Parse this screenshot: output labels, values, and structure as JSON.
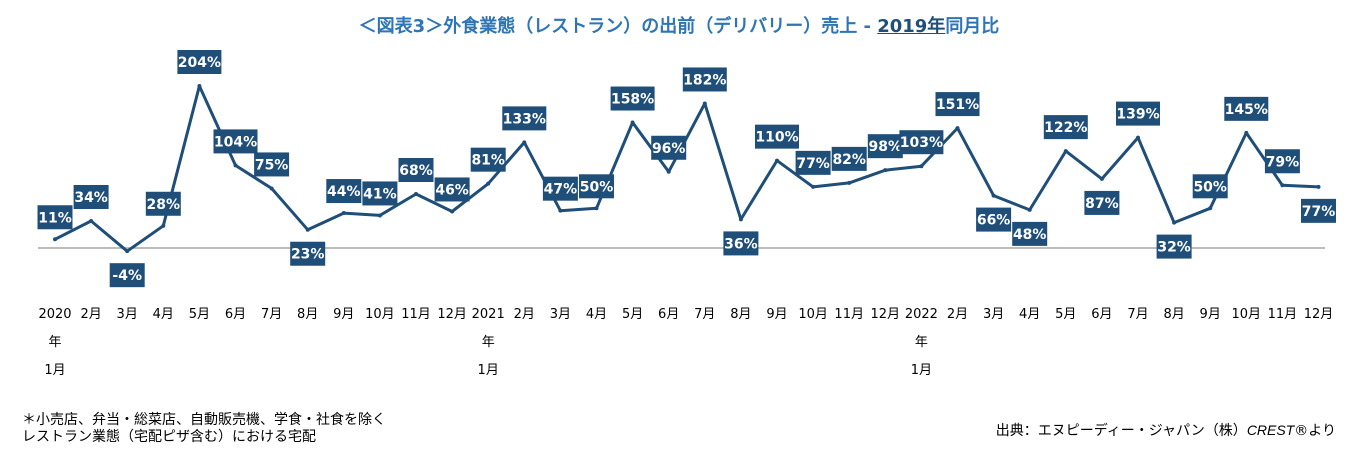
{
  "title": {
    "prefix": "＜図表3＞外食業態（レストラン）の出前（デリバリー）売上 - ",
    "year": "2019年",
    "suffix": "同月比"
  },
  "notes": {
    "line1": "＊小売店、弁当・総菜店、自動販売機、学食・社食を除く",
    "line2": "レストラン業態（宅配ピザ含む）における宅配"
  },
  "source": {
    "prefix": "出典：エヌピーディー・ジャパン（株）",
    "brand": "CREST",
    "suffix": "®より"
  },
  "colors": {
    "line": "#1f4e79",
    "label_bg": "#1f4e79",
    "label_text": "#ffffff",
    "title": "#2e75b6",
    "baseline": "#a6a6a6"
  },
  "chart_data": {
    "type": "line",
    "ylim": [
      -20,
      220
    ],
    "baseline": 0,
    "x": [
      "2020年1月",
      "2月",
      "3月",
      "4月",
      "5月",
      "6月",
      "7月",
      "8月",
      "9月",
      "10月",
      "11月",
      "12月",
      "2021年1月",
      "2月",
      "3月",
      "4月",
      "5月",
      "6月",
      "7月",
      "8月",
      "9月",
      "10月",
      "11月",
      "12月",
      "2022年1月",
      "2月",
      "3月",
      "4月",
      "5月",
      "6月",
      "7月",
      "8月",
      "9月",
      "10月",
      "11月",
      "12月"
    ],
    "tick_labels": [
      [
        "2020",
        "年",
        "1月"
      ],
      [
        "2月"
      ],
      [
        "3月"
      ],
      [
        "4月"
      ],
      [
        "5月"
      ],
      [
        "6月"
      ],
      [
        "7月"
      ],
      [
        "8月"
      ],
      [
        "9月"
      ],
      [
        "10月"
      ],
      [
        "11月"
      ],
      [
        "12月"
      ],
      [
        "2021",
        "年",
        "1月"
      ],
      [
        "2月"
      ],
      [
        "3月"
      ],
      [
        "4月"
      ],
      [
        "5月"
      ],
      [
        "6月"
      ],
      [
        "7月"
      ],
      [
        "8月"
      ],
      [
        "9月"
      ],
      [
        "10月"
      ],
      [
        "11月"
      ],
      [
        "12月"
      ],
      [
        "2022",
        "年",
        "1月"
      ],
      [
        "2月"
      ],
      [
        "3月"
      ],
      [
        "4月"
      ],
      [
        "5月"
      ],
      [
        "6月"
      ],
      [
        "7月"
      ],
      [
        "8月"
      ],
      [
        "9月"
      ],
      [
        "10月"
      ],
      [
        "11月"
      ],
      [
        "12月"
      ]
    ],
    "series": [
      {
        "values": [
          11,
          34,
          -4,
          28,
          204,
          104,
          75,
          23,
          44,
          41,
          68,
          46,
          81,
          133,
          47,
          50,
          158,
          96,
          182,
          36,
          110,
          77,
          82,
          98,
          103,
          151,
          66,
          48,
          122,
          87,
          139,
          32,
          50,
          145,
          79,
          77
        ],
        "labels": [
          "11%",
          "34%",
          "-4%",
          "28%",
          "204%",
          "104%",
          "75%",
          "23%",
          "44%",
          "41%",
          "68%",
          "46%",
          "81%",
          "133%",
          "47%",
          "50%",
          "158%",
          "96%",
          "182%",
          "36%",
          "110%",
          "77%",
          "82%",
          "98%",
          "103%",
          "151%",
          "66%",
          "48%",
          "122%",
          "87%",
          "139%",
          "32%",
          "50%",
          "145%",
          "79%",
          "77%"
        ]
      }
    ],
    "grid": false,
    "legend": "none"
  }
}
